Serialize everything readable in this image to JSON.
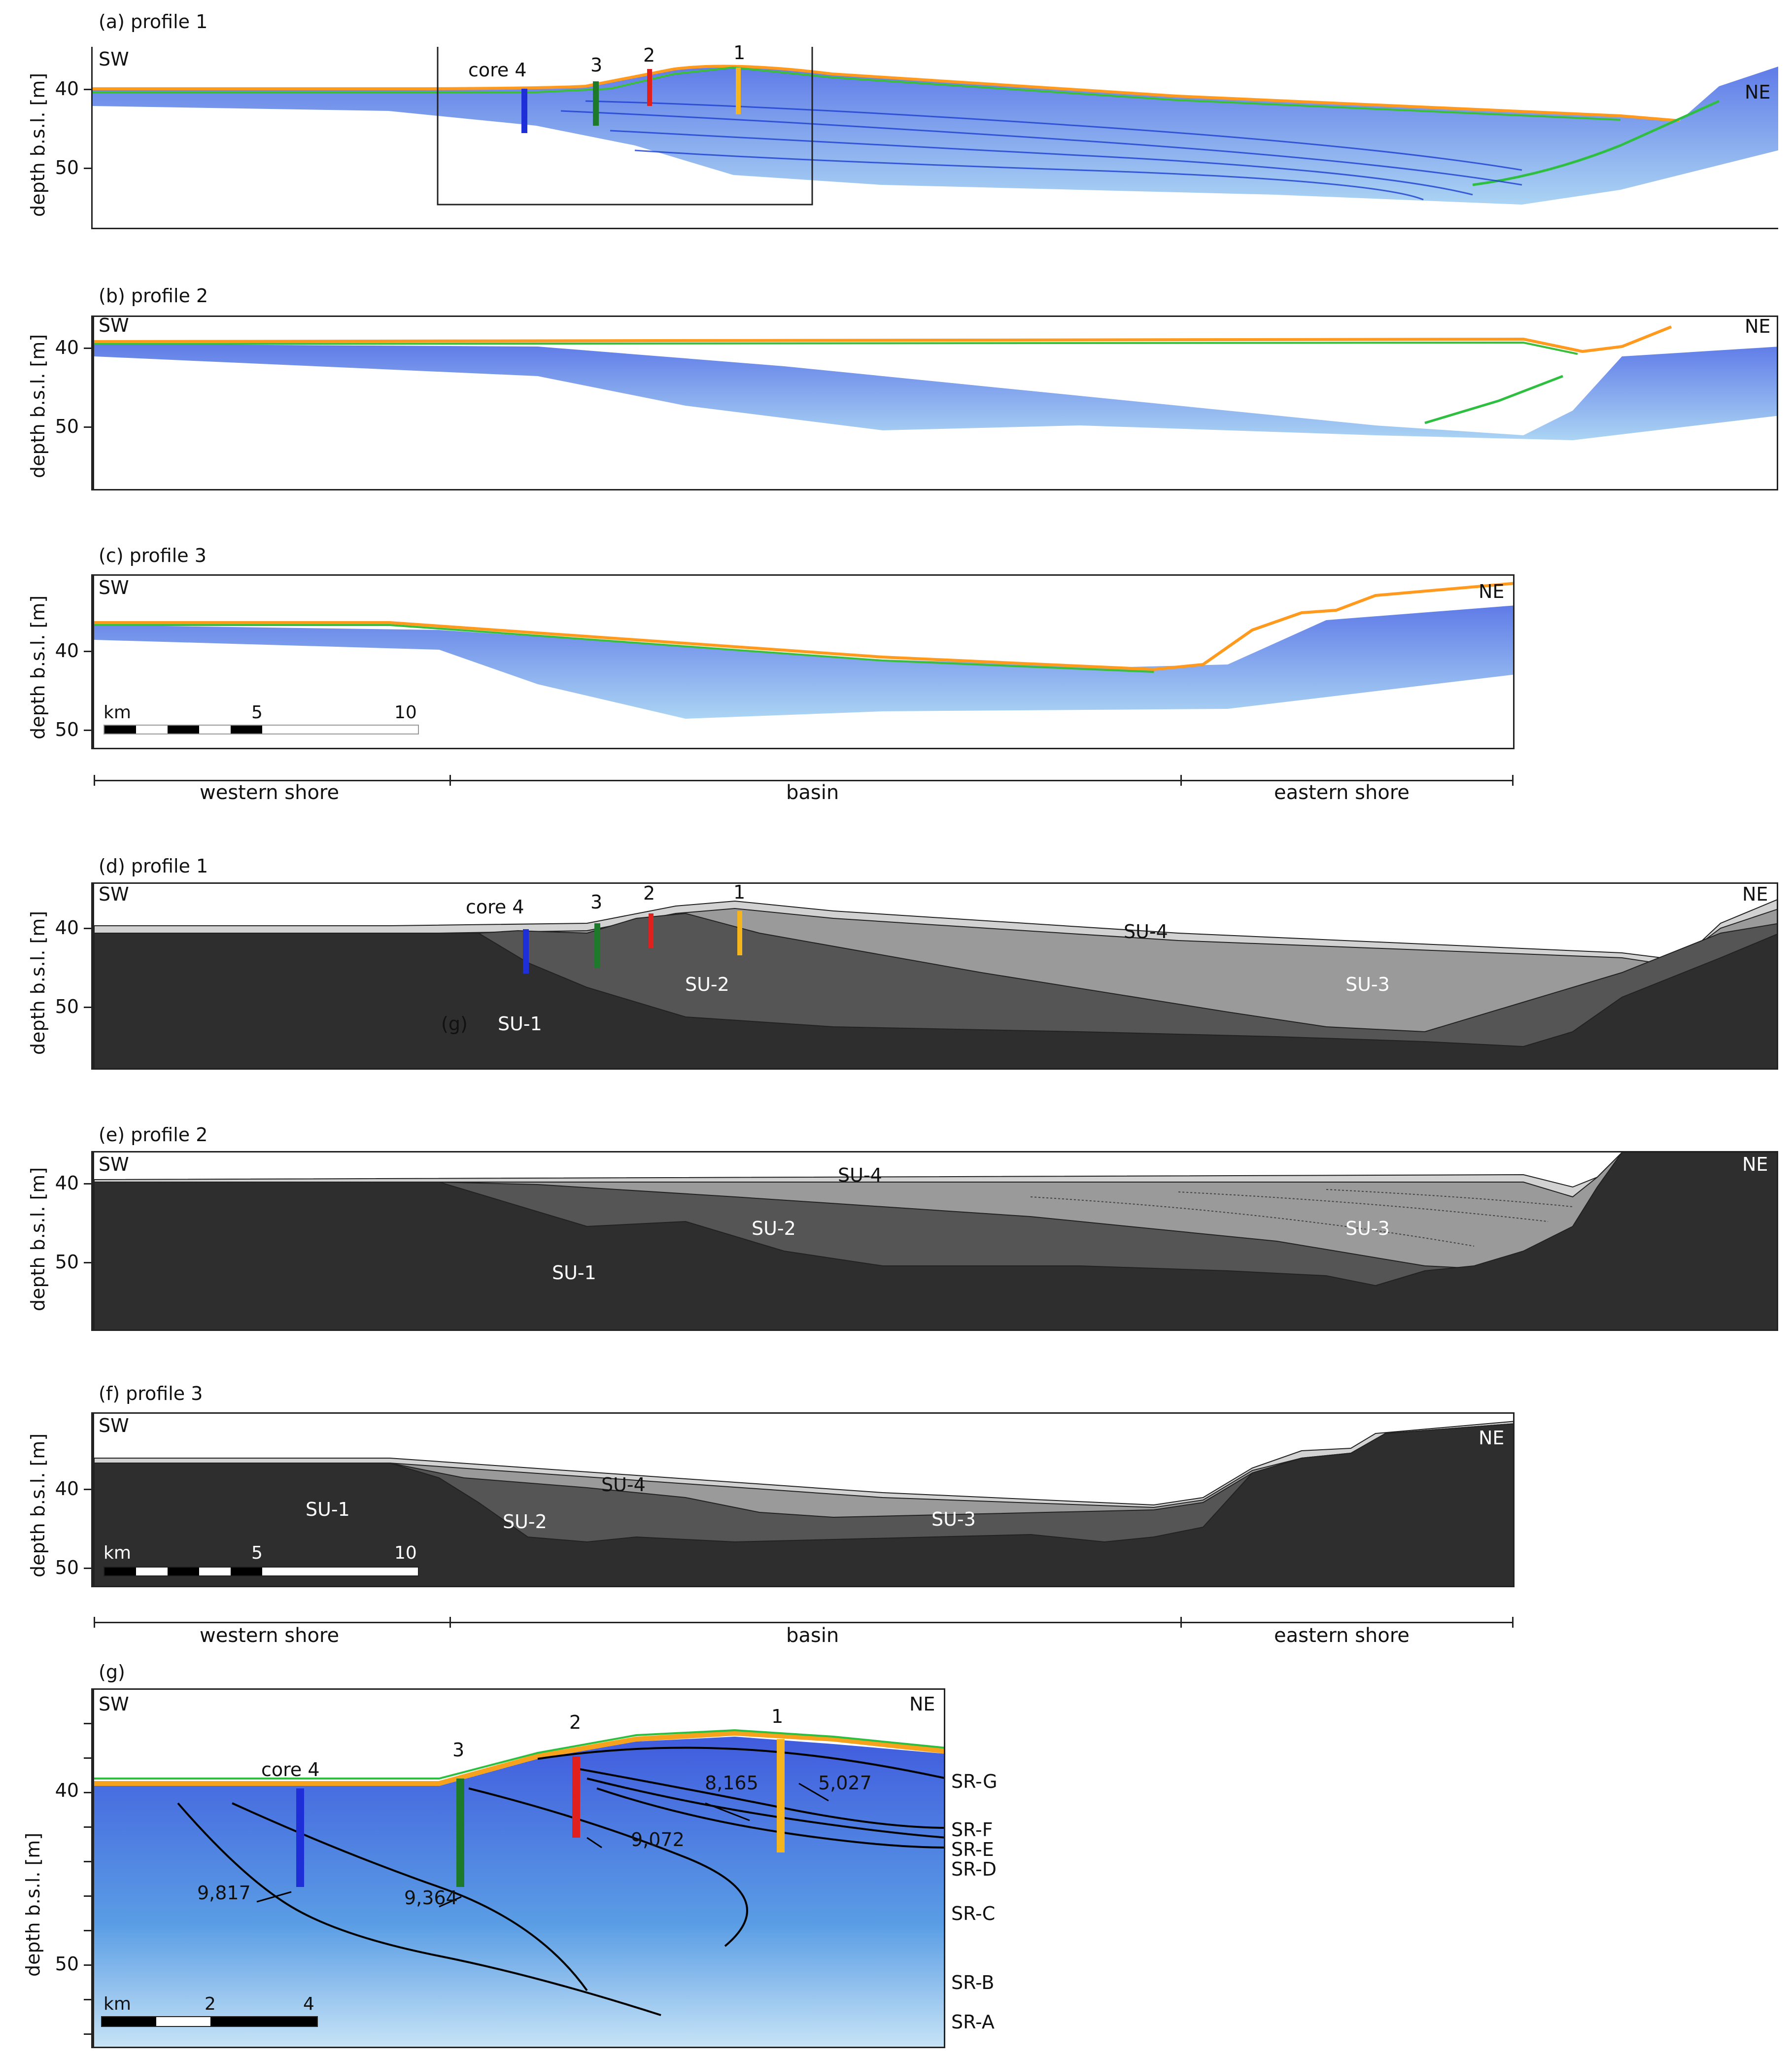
{
  "panels": {
    "a": {
      "title": "(a) profile 1"
    },
    "b": {
      "title": "(b) profile 2"
    },
    "c": {
      "title": "(c) profile 3"
    },
    "d": {
      "title": "(d) profile 1"
    },
    "e": {
      "title": "(e) profile 2"
    },
    "f": {
      "title": "(f) profile 3"
    },
    "g": {
      "title": "(g)"
    }
  },
  "orientation": {
    "sw": "SW",
    "ne": "NE"
  },
  "y_axis": {
    "label": "depth b.s.l. [m]",
    "ticks": [
      "40",
      "50"
    ]
  },
  "cores": {
    "core4": "core 4",
    "c3": "3",
    "c2": "2",
    "c1": "1"
  },
  "core_colors": {
    "core4": "#1f2fd8",
    "c3": "#1c7a2a",
    "c2": "#e0201c",
    "c1": "#f7b51d"
  },
  "zones": {
    "western": "western shore",
    "basin": "basin",
    "eastern": "eastern shore"
  },
  "scale_bar": {
    "unit": "km",
    "p3_ticks": [
      "5",
      "10"
    ],
    "g_ticks": [
      "2",
      "4"
    ]
  },
  "seismic_units": {
    "su1": "SU-1",
    "su2": "SU-2",
    "su3": "SU-3",
    "su4": "SU-4"
  },
  "unit_colors": {
    "su1": "#2e2e2e",
    "su2": "#555555",
    "su3": "#9a9a9a",
    "su4": "#d2d2d2"
  },
  "panel_d_ref": "(g)",
  "reflectors": [
    "SR-G",
    "SR-F",
    "SR-E",
    "SR-D",
    "SR-C",
    "SR-B",
    "SR-A"
  ],
  "ages": {
    "a5027": "5,027",
    "a8165": "8,165",
    "a9072": "9,072",
    "a9364": "9,364",
    "a9817": "9,817"
  }
}
